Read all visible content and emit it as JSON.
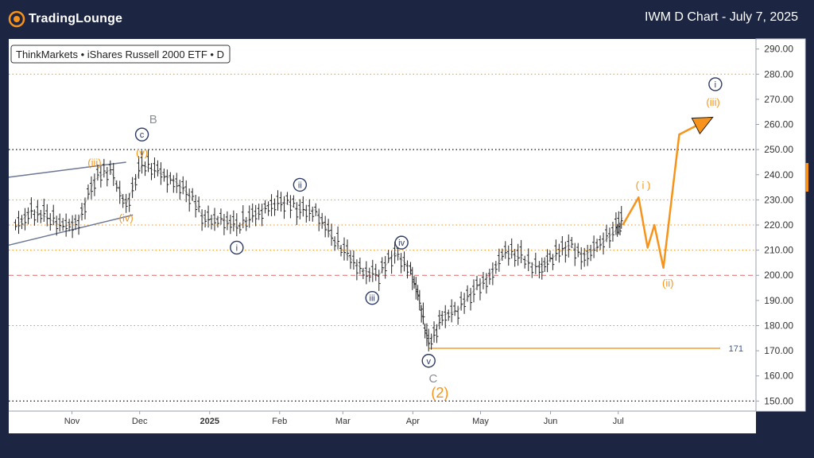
{
  "header": {
    "brand": "TradingLounge",
    "title": "IWM D Chart - July 7, 2025"
  },
  "chart_data": {
    "type": "line",
    "symbol_label": "ThinkMarkets • iShares Russell 2000 ETF • D",
    "y_ticks": [
      "290.00",
      "280.00",
      "270.00",
      "260.00",
      "250.00",
      "240.00",
      "230.00",
      "220.00",
      "210.00",
      "200.00",
      "190.00",
      "180.00",
      "170.00",
      "160.00",
      "150.00"
    ],
    "y_tick_values": [
      290,
      280,
      270,
      260,
      250,
      240,
      230,
      220,
      210,
      200,
      190,
      180,
      170,
      160,
      150
    ],
    "ylim": [
      146,
      294
    ],
    "x_ticks": [
      "Nov",
      "Dec",
      "2025",
      "Feb",
      "Mar",
      "Apr",
      "May",
      "Jun",
      "Jul"
    ],
    "x_tick_dates": [
      "2024-11-01",
      "2024-12-01",
      "2025-01-01",
      "2025-02-01",
      "2025-03-01",
      "2025-04-01",
      "2025-05-01",
      "2025-06-01",
      "2025-07-01"
    ],
    "xlim": [
      "2024-10-04",
      "2025-08-31"
    ],
    "grid": {
      "black_dotted": [
        250,
        150
      ],
      "orange_dotted": [
        280,
        230,
        220,
        210,
        180
      ],
      "red_dashed": [
        200
      ]
    },
    "price_series": {
      "x": [
        "2024-10-07",
        "2024-10-14",
        "2024-10-21",
        "2024-10-28",
        "2024-11-04",
        "2024-11-11",
        "2024-11-18",
        "2024-11-25",
        "2024-12-02",
        "2024-12-09",
        "2024-12-16",
        "2024-12-23",
        "2024-12-30",
        "2025-01-06",
        "2025-01-13",
        "2025-01-20",
        "2025-01-27",
        "2025-02-03",
        "2025-02-10",
        "2025-02-17",
        "2025-02-24",
        "2025-03-03",
        "2025-03-10",
        "2025-03-17",
        "2025-03-24",
        "2025-03-31",
        "2025-04-04",
        "2025-04-08",
        "2025-04-14",
        "2025-04-21",
        "2025-04-28",
        "2025-05-05",
        "2025-05-12",
        "2025-05-19",
        "2025-05-27",
        "2025-06-02",
        "2025-06-09",
        "2025-06-16",
        "2025-06-23",
        "2025-06-30",
        "2025-07-03"
      ],
      "values": [
        219,
        226,
        223,
        219,
        222,
        238,
        242,
        228,
        244,
        241,
        238,
        232,
        222,
        223,
        219,
        223,
        228,
        229,
        226,
        226,
        215,
        208,
        202,
        200,
        209,
        203,
        189,
        172,
        184,
        186,
        194,
        200,
        209,
        207,
        203,
        207,
        212,
        208,
        212,
        218,
        223
      ]
    },
    "projection": {
      "x": [
        "2025-07-03",
        "2025-07-10",
        "2025-07-14",
        "2025-07-17",
        "2025-07-21",
        "2025-07-28",
        "2025-08-10"
      ],
      "values": [
        220,
        231,
        211,
        220,
        203,
        256,
        262
      ]
    },
    "support_line": {
      "value": 171,
      "label": "171",
      "from": "2025-04-08"
    },
    "channel_lines": [
      {
        "x": [
          "2024-10-04",
          "2024-11-25"
        ],
        "values": [
          239,
          245
        ]
      },
      {
        "x": [
          "2024-10-04",
          "2024-11-28"
        ],
        "values": [
          212,
          224
        ]
      }
    ],
    "wave_labels": [
      {
        "text": "(iii)",
        "style": "orange",
        "x": "2024-11-11",
        "y": 245
      },
      {
        "text": "(iv)",
        "style": "orange",
        "x": "2024-11-25",
        "y": 223
      },
      {
        "text": "(v)",
        "style": "orange",
        "x": "2024-12-02",
        "y": 249
      },
      {
        "text": "c",
        "style": "circle",
        "x": "2024-12-02",
        "y": 256
      },
      {
        "text": "B",
        "style": "gray",
        "x": "2024-12-07",
        "y": 262
      },
      {
        "text": "i",
        "style": "circle",
        "x": "2025-01-13",
        "y": 211
      },
      {
        "text": "ii",
        "style": "circle",
        "x": "2025-02-10",
        "y": 236
      },
      {
        "text": "iii",
        "style": "circle",
        "x": "2025-03-14",
        "y": 191
      },
      {
        "text": "iv",
        "style": "circle",
        "x": "2025-03-27",
        "y": 213
      },
      {
        "text": "v",
        "style": "circle",
        "x": "2025-04-08",
        "y": 166
      },
      {
        "text": "C",
        "style": "gray",
        "x": "2025-04-10",
        "y": 159
      },
      {
        "text": "(2)",
        "style": "orange-large",
        "x": "2025-04-13",
        "y": 153
      },
      {
        "text": "( i )",
        "style": "orange",
        "x": "2025-07-12",
        "y": 236
      },
      {
        "text": "(ii)",
        "style": "orange",
        "x": "2025-07-23",
        "y": 197
      },
      {
        "text": "(iii)",
        "style": "orange",
        "x": "2025-08-12",
        "y": 269
      },
      {
        "text": "i",
        "style": "circle",
        "x": "2025-08-13",
        "y": 276
      }
    ]
  },
  "colors": {
    "background": "#1c2541",
    "plot_bg": "#ffffff",
    "orange": "#f7931a",
    "navy": "#2c3a66",
    "support": "#f59b2c",
    "channel": "#6b7895"
  },
  "icons": {
    "logo": "trading-lounge-logo-icon",
    "arrow": "projection-arrow-icon"
  }
}
